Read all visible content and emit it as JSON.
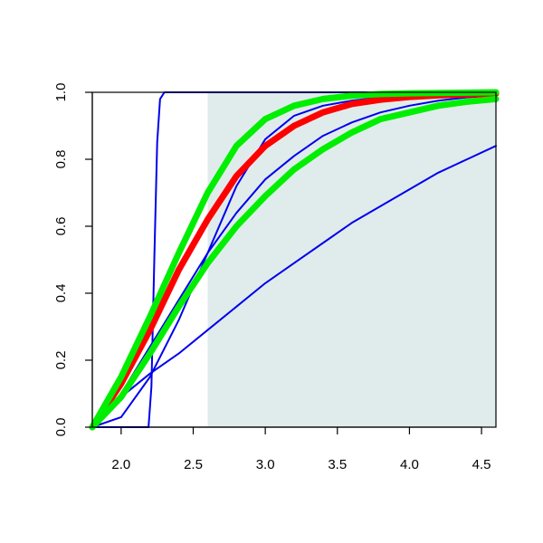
{
  "chart_data": {
    "type": "line",
    "title": "",
    "xlabel": "",
    "ylabel": "",
    "xlim": [
      1.8,
      4.6
    ],
    "ylim": [
      0.0,
      1.0
    ],
    "x_ticks": [
      "2.0",
      "2.5",
      "3.0",
      "3.5",
      "4.0",
      "4.5"
    ],
    "y_ticks": [
      "0.0",
      "0.2",
      "0.4",
      "0.6",
      "0.8",
      "1.0"
    ],
    "grid": false,
    "legend": "none",
    "shaded_region": {
      "x_from": 2.6,
      "x_to": 4.6,
      "color": "#e0ecec"
    },
    "series": [
      {
        "color": "#0000ee",
        "weight": "thin",
        "x": [
          1.8,
          2.19,
          2.21,
          2.23,
          2.25,
          2.27,
          2.3,
          4.6
        ],
        "y": [
          0.0,
          0.0,
          0.12,
          0.5,
          0.85,
          0.98,
          1.0,
          1.0
        ]
      },
      {
        "color": "#0000ee",
        "weight": "thin",
        "x": [
          1.8,
          2.0,
          2.2,
          2.4,
          2.6,
          2.8,
          3.0,
          3.2,
          3.4,
          3.6,
          3.8,
          4.0,
          4.2,
          4.4,
          4.6
        ],
        "y": [
          0.0,
          0.03,
          0.15,
          0.32,
          0.52,
          0.72,
          0.86,
          0.93,
          0.96,
          0.975,
          0.985,
          0.99,
          0.995,
          0.997,
          0.998
        ]
      },
      {
        "color": "#0000ee",
        "weight": "thin",
        "x": [
          1.8,
          2.0,
          2.2,
          2.4,
          2.6,
          2.8,
          3.0,
          3.2,
          3.4,
          3.6,
          3.8,
          4.0,
          4.2,
          4.4,
          4.6
        ],
        "y": [
          0.0,
          0.1,
          0.24,
          0.38,
          0.52,
          0.64,
          0.74,
          0.81,
          0.87,
          0.91,
          0.94,
          0.96,
          0.975,
          0.985,
          0.99
        ]
      },
      {
        "color": "#0000ee",
        "weight": "thin",
        "x": [
          1.8,
          2.0,
          2.2,
          2.4,
          2.6,
          2.8,
          3.0,
          3.2,
          3.4,
          3.6,
          3.8,
          4.0,
          4.2,
          4.4,
          4.6
        ],
        "y": [
          0.0,
          0.09,
          0.16,
          0.22,
          0.29,
          0.36,
          0.43,
          0.49,
          0.55,
          0.61,
          0.66,
          0.71,
          0.76,
          0.8,
          0.84
        ]
      },
      {
        "color": "#ff0000",
        "weight": "thick",
        "x": [
          1.8,
          2.0,
          2.2,
          2.4,
          2.6,
          2.8,
          3.0,
          3.2,
          3.4,
          3.6,
          3.8,
          4.0,
          4.2,
          4.4,
          4.6
        ],
        "y": [
          0.0,
          0.13,
          0.29,
          0.47,
          0.62,
          0.75,
          0.84,
          0.9,
          0.94,
          0.965,
          0.978,
          0.986,
          0.991,
          0.994,
          0.996
        ]
      },
      {
        "color": "#00ee00",
        "weight": "thick",
        "x": [
          1.8,
          2.0,
          2.2,
          2.4,
          2.6,
          2.8,
          3.0,
          3.2,
          3.4,
          3.6,
          3.8,
          4.0,
          4.2,
          4.4,
          4.6
        ],
        "y": [
          0.0,
          0.15,
          0.33,
          0.52,
          0.7,
          0.84,
          0.92,
          0.96,
          0.98,
          0.99,
          0.995,
          0.997,
          0.998,
          0.999,
          1.0
        ]
      },
      {
        "color": "#00ee00",
        "weight": "thick",
        "x": [
          1.8,
          2.0,
          2.2,
          2.4,
          2.6,
          2.8,
          3.0,
          3.2,
          3.4,
          3.6,
          3.8,
          4.0,
          4.2,
          4.4,
          4.6
        ],
        "y": [
          0.0,
          0.09,
          0.22,
          0.36,
          0.49,
          0.6,
          0.69,
          0.77,
          0.83,
          0.88,
          0.92,
          0.94,
          0.96,
          0.972,
          0.98
        ]
      }
    ]
  }
}
